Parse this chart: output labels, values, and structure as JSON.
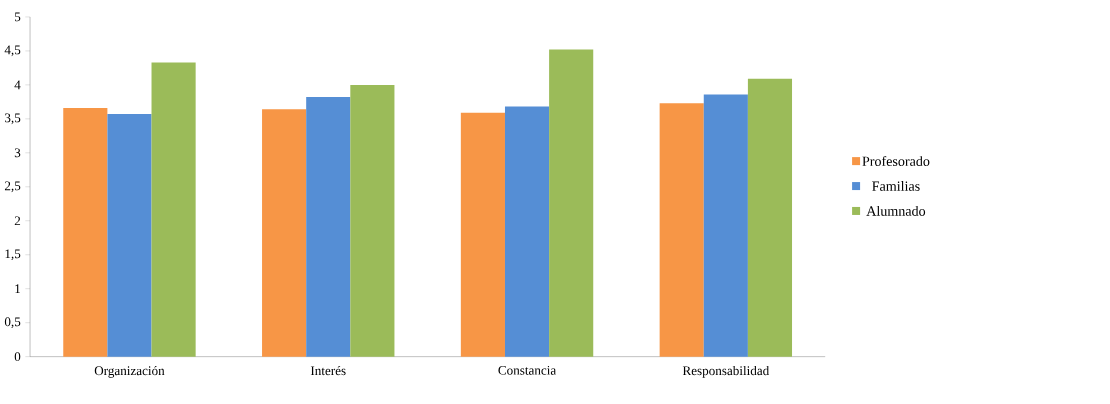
{
  "chart_data": {
    "type": "bar",
    "categories": [
      "Organización",
      "Interés",
      "Constancia",
      "Responsabilidad"
    ],
    "series": [
      {
        "name": "Profesorado",
        "color": "#f79646",
        "values": [
          3.66,
          3.64,
          3.59,
          3.73
        ]
      },
      {
        "name": "Familias",
        "color": "#558ed5",
        "values": [
          3.57,
          3.82,
          3.68,
          3.86
        ]
      },
      {
        "name": "Alumnado",
        "color": "#9bbb59",
        "values": [
          4.33,
          4.0,
          4.52,
          4.09
        ]
      }
    ],
    "ylim": [
      0,
      5
    ],
    "yticks": [
      0,
      {
        "value": 0.5,
        "label": "0,5"
      },
      1,
      {
        "value": 1.5,
        "label": "1,5"
      },
      2,
      {
        "value": 2.5,
        "label": "2,5"
      },
      3,
      {
        "value": 3.5,
        "label": "3,5"
      },
      4,
      {
        "value": 4.5,
        "label": "4,5"
      },
      5
    ],
    "grid": false,
    "legend": "right"
  }
}
